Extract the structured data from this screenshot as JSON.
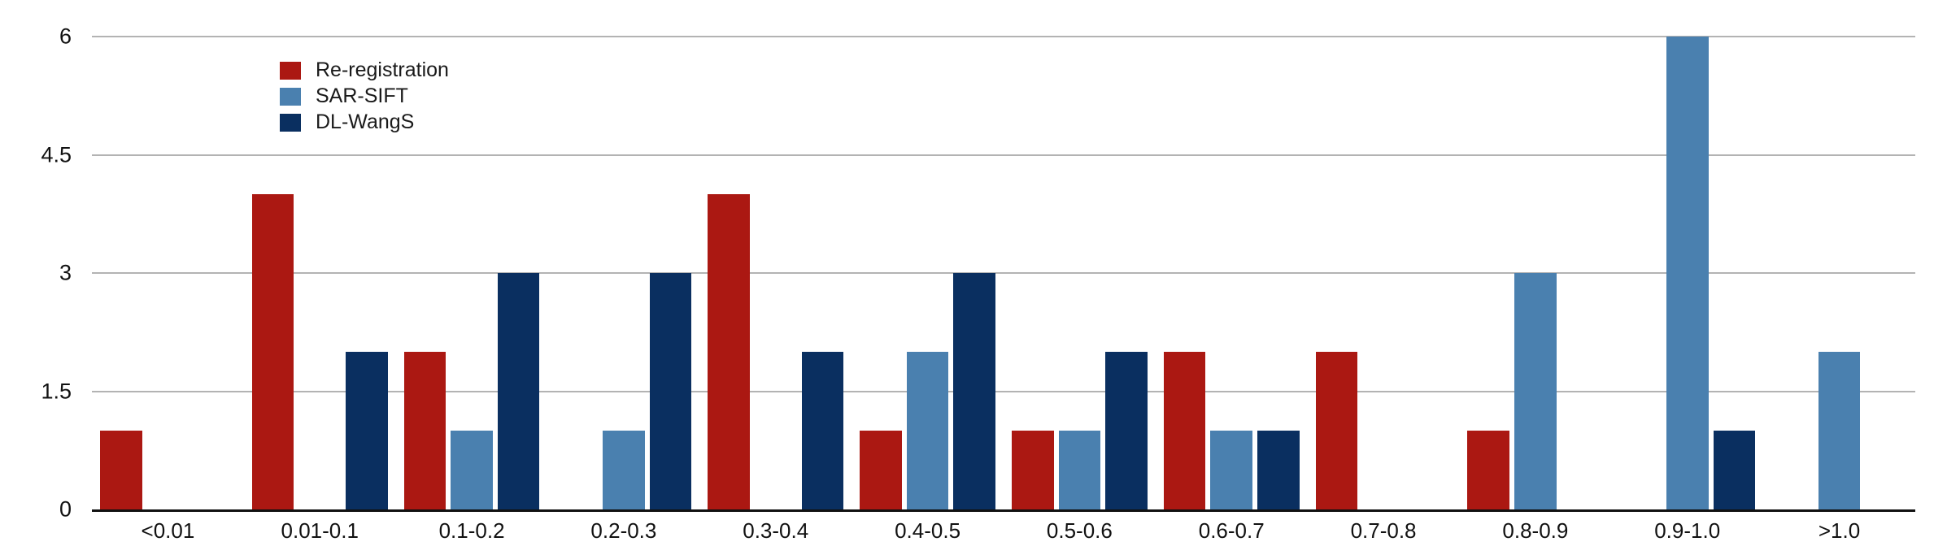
{
  "chart_data": {
    "type": "bar",
    "title": "",
    "xlabel": "",
    "ylabel": "",
    "ylim": [
      0,
      6
    ],
    "grid": true,
    "legend_position": "top-left-inset",
    "background_color": "#ffffff",
    "gridline_color": "#b3b3b3",
    "axis_line_color": "#111111",
    "y_ticks": [
      {
        "value": 0,
        "label": "0"
      },
      {
        "value": 1.5,
        "label": "1.5"
      },
      {
        "value": 3,
        "label": "3"
      },
      {
        "value": 4.5,
        "label": "4.5"
      },
      {
        "value": 6,
        "label": "6"
      }
    ],
    "categories": [
      "<0.01",
      "0.01-0.1",
      "0.1-0.2",
      "0.2-0.3",
      "0.3-0.4",
      "0.4-0.5",
      "0.5-0.6",
      "0.6-0.7",
      "0.7-0.8",
      "0.8-0.9",
      "0.9-1.0",
      ">1.0"
    ],
    "series": [
      {
        "name": "Re-registration",
        "color": "#AB1812",
        "values": [
          1,
          4,
          2,
          0,
          4,
          1,
          1,
          2,
          2,
          1,
          0,
          0
        ]
      },
      {
        "name": "SAR-SIFT",
        "color": "#4A80AF",
        "values": [
          0,
          0,
          1,
          1,
          0,
          2,
          1,
          1,
          0,
          3,
          6,
          2
        ]
      },
      {
        "name": "DL-WangS",
        "color": "#0A2F60",
        "values": [
          0,
          2,
          3,
          3,
          2,
          3,
          2,
          1,
          0,
          0,
          1,
          0
        ]
      }
    ]
  }
}
